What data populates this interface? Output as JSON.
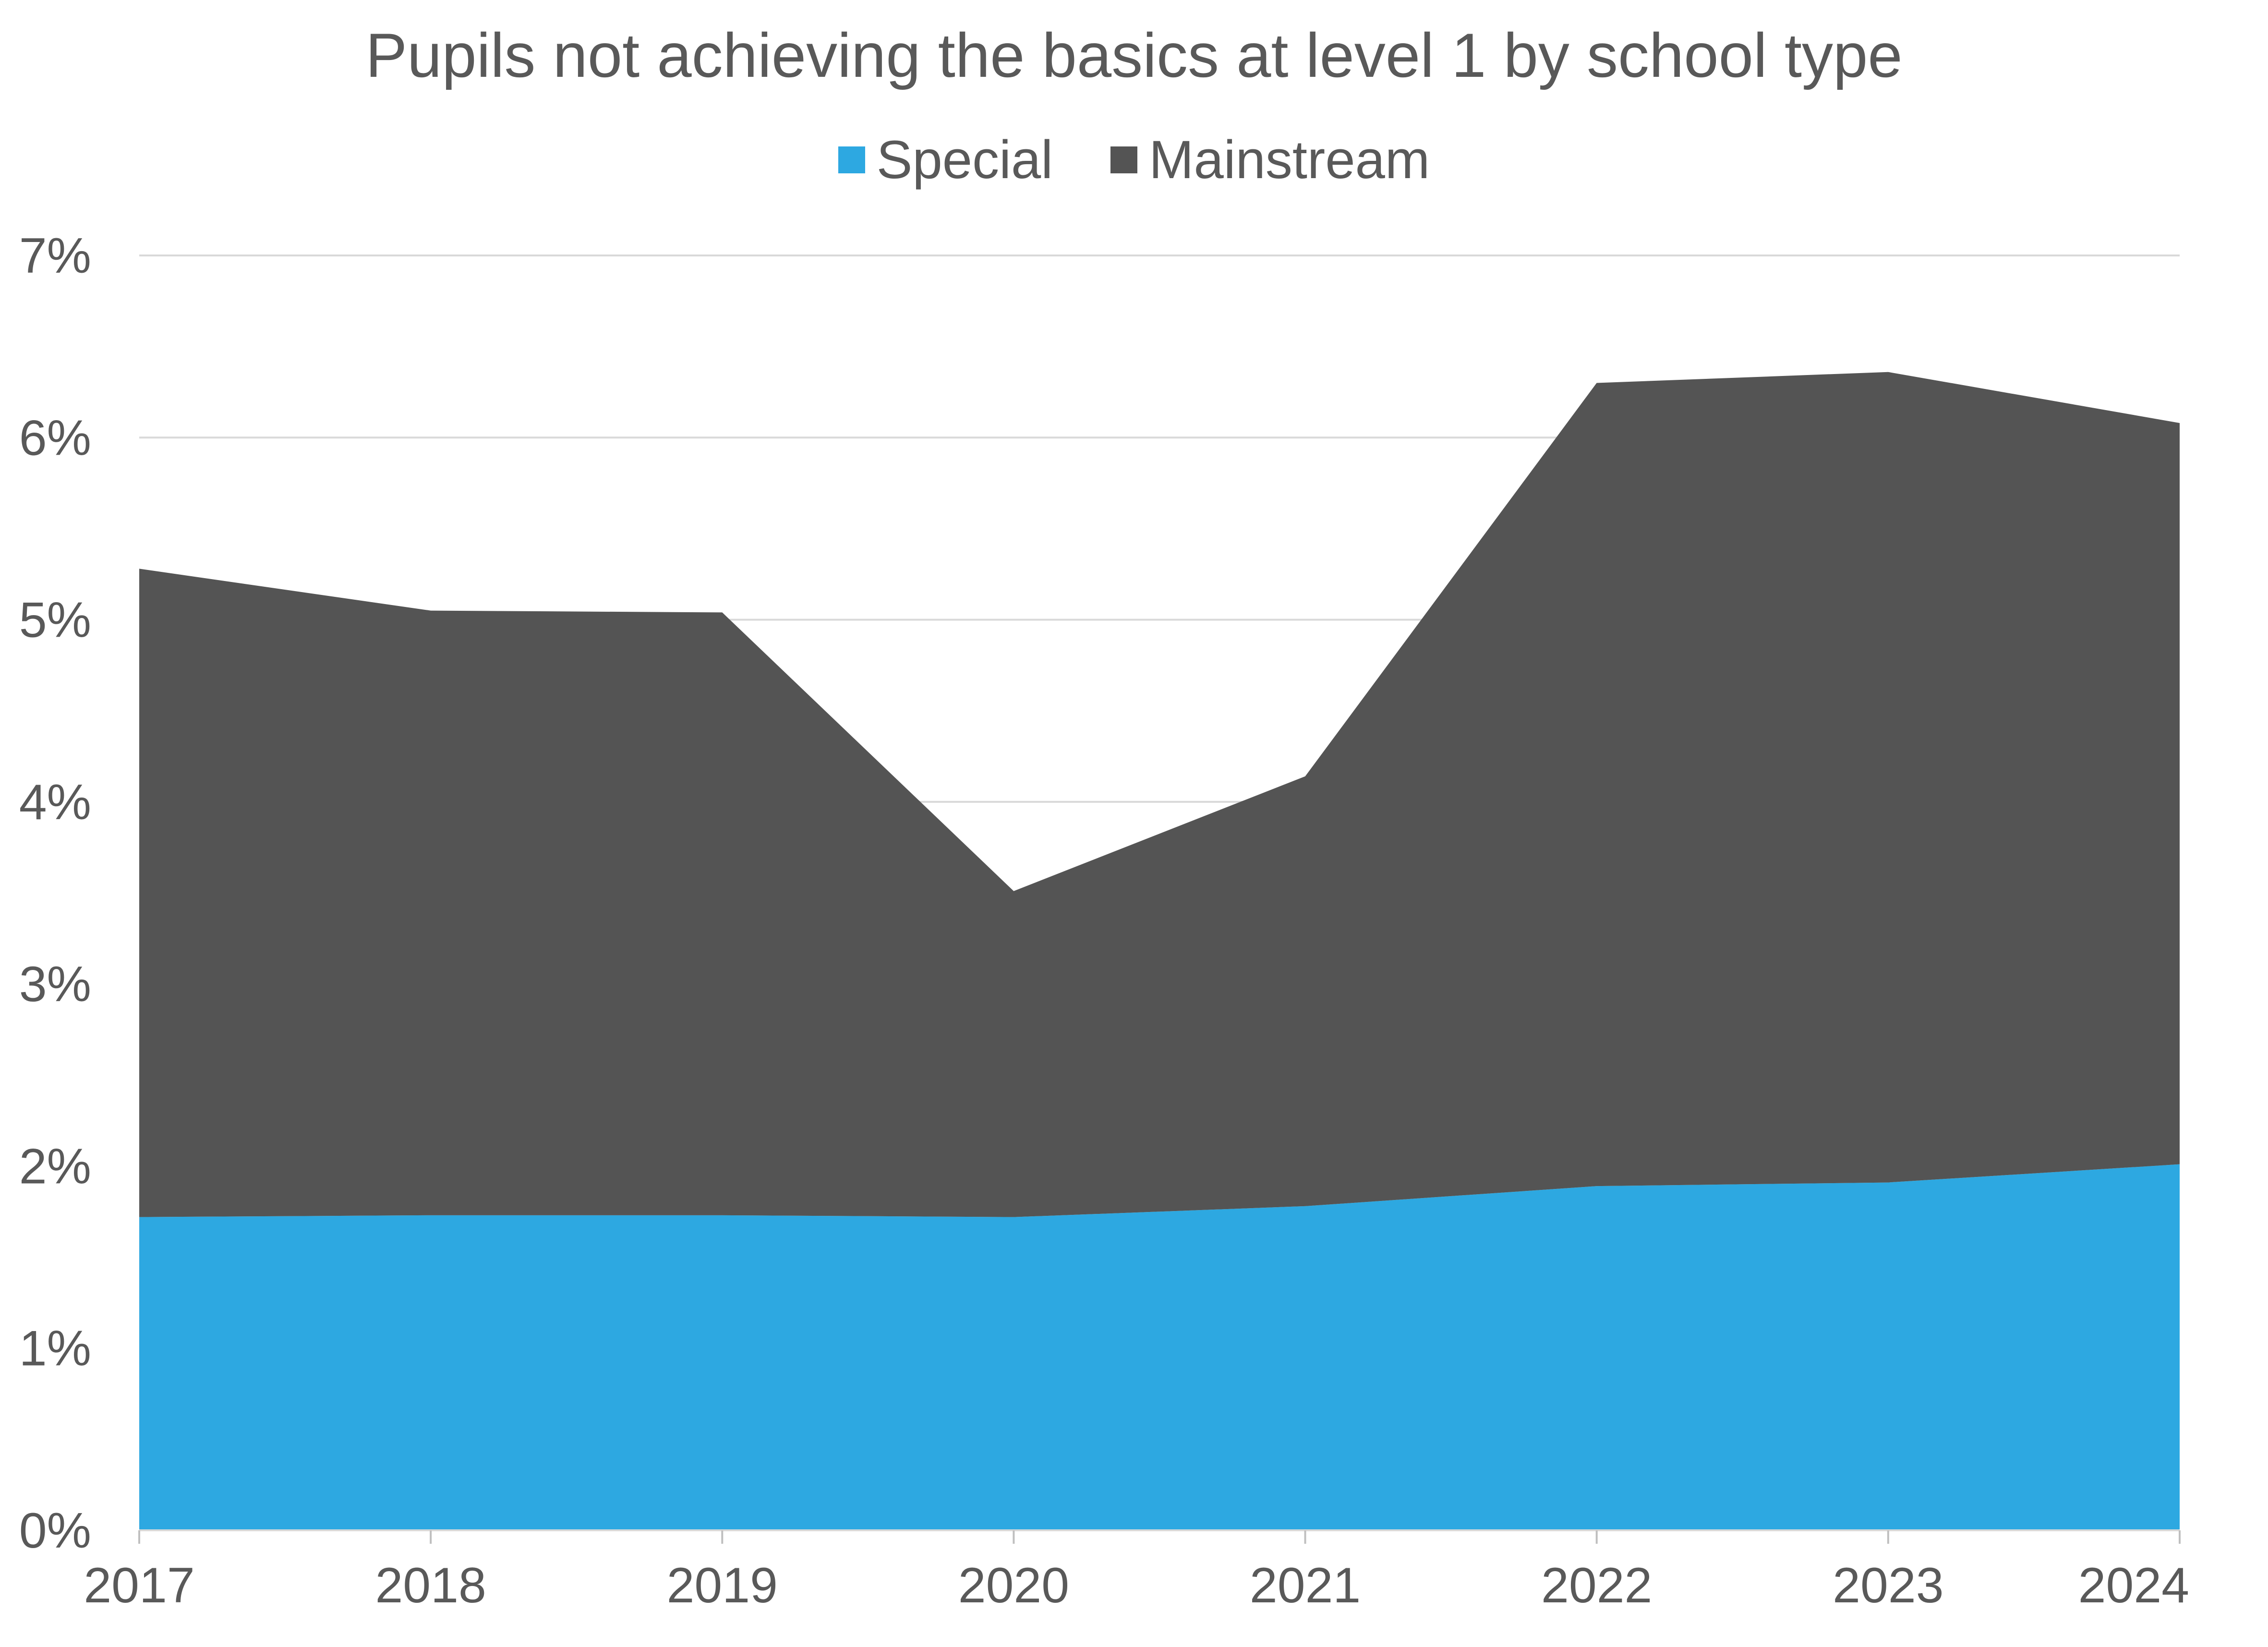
{
  "chart_data": {
    "type": "area",
    "stacked": true,
    "title": "Pupils not achieving the basics at level 1 by school type",
    "xlabel": "",
    "ylabel": "",
    "categories": [
      "2017",
      "2018",
      "2019",
      "2020",
      "2021",
      "2022",
      "2023",
      "2024"
    ],
    "series": [
      {
        "name": "Special",
        "color": "#2DA8E1",
        "values": [
          1.72,
          1.73,
          1.73,
          1.72,
          1.78,
          1.89,
          1.91,
          2.01
        ]
      },
      {
        "name": "Mainstream",
        "color": "#545454",
        "values": [
          3.56,
          3.32,
          3.31,
          1.79,
          2.36,
          4.41,
          4.45,
          4.07
        ]
      }
    ],
    "ylim": [
      0,
      7
    ],
    "yticks": [
      "0%",
      "1%",
      "2%",
      "3%",
      "4%",
      "5%",
      "6%",
      "7%"
    ],
    "grid": true,
    "legend_position": "top"
  }
}
